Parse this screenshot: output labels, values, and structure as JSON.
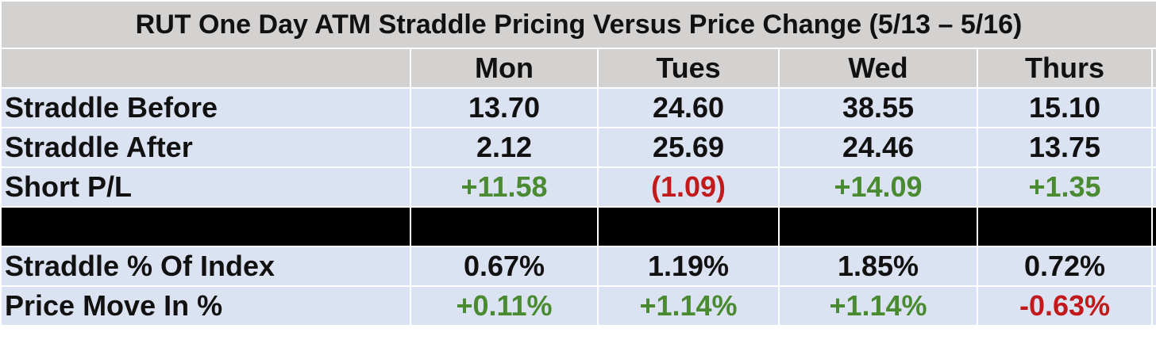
{
  "chart_data": {
    "type": "table",
    "title": "RUT One Day ATM Straddle Pricing Versus Price Change (5/13 – 5/16)",
    "columns": [
      "",
      "Mon",
      "Tues",
      "Wed",
      "Thurs"
    ],
    "rows": [
      {
        "label": "Straddle Before",
        "values": [
          "13.70",
          "24.60",
          "38.55",
          "15.10"
        ],
        "colors": [
          "neu",
          "neu",
          "neu",
          "neu"
        ]
      },
      {
        "label": "Straddle After",
        "values": [
          "2.12",
          "25.69",
          "24.46",
          "13.75"
        ],
        "colors": [
          "neu",
          "neu",
          "neu",
          "neu"
        ]
      },
      {
        "label": "Short P/L",
        "values": [
          "+11.58",
          "(1.09)",
          "+14.09",
          "+1.35"
        ],
        "colors": [
          "pos",
          "neg",
          "pos",
          "pos"
        ]
      },
      {
        "label": "Straddle % Of Index",
        "values": [
          "0.67%",
          "1.19%",
          "1.85%",
          "0.72%"
        ],
        "colors": [
          "neu",
          "neu",
          "neu",
          "neu"
        ]
      },
      {
        "label": "Price Move In %",
        "values": [
          "+0.11%",
          "+1.14%",
          "+1.14%",
          "-0.63%"
        ],
        "colors": [
          "pos",
          "pos",
          "pos",
          "neg"
        ]
      }
    ],
    "separator_after_row": 2,
    "colors": {
      "header_bg": "#d4d1d1",
      "row_bg": "#dbe3f3",
      "separator_bg": "#000000",
      "positive": "#4a8a31",
      "negative": "#c21a1a",
      "text": "#111111"
    }
  }
}
